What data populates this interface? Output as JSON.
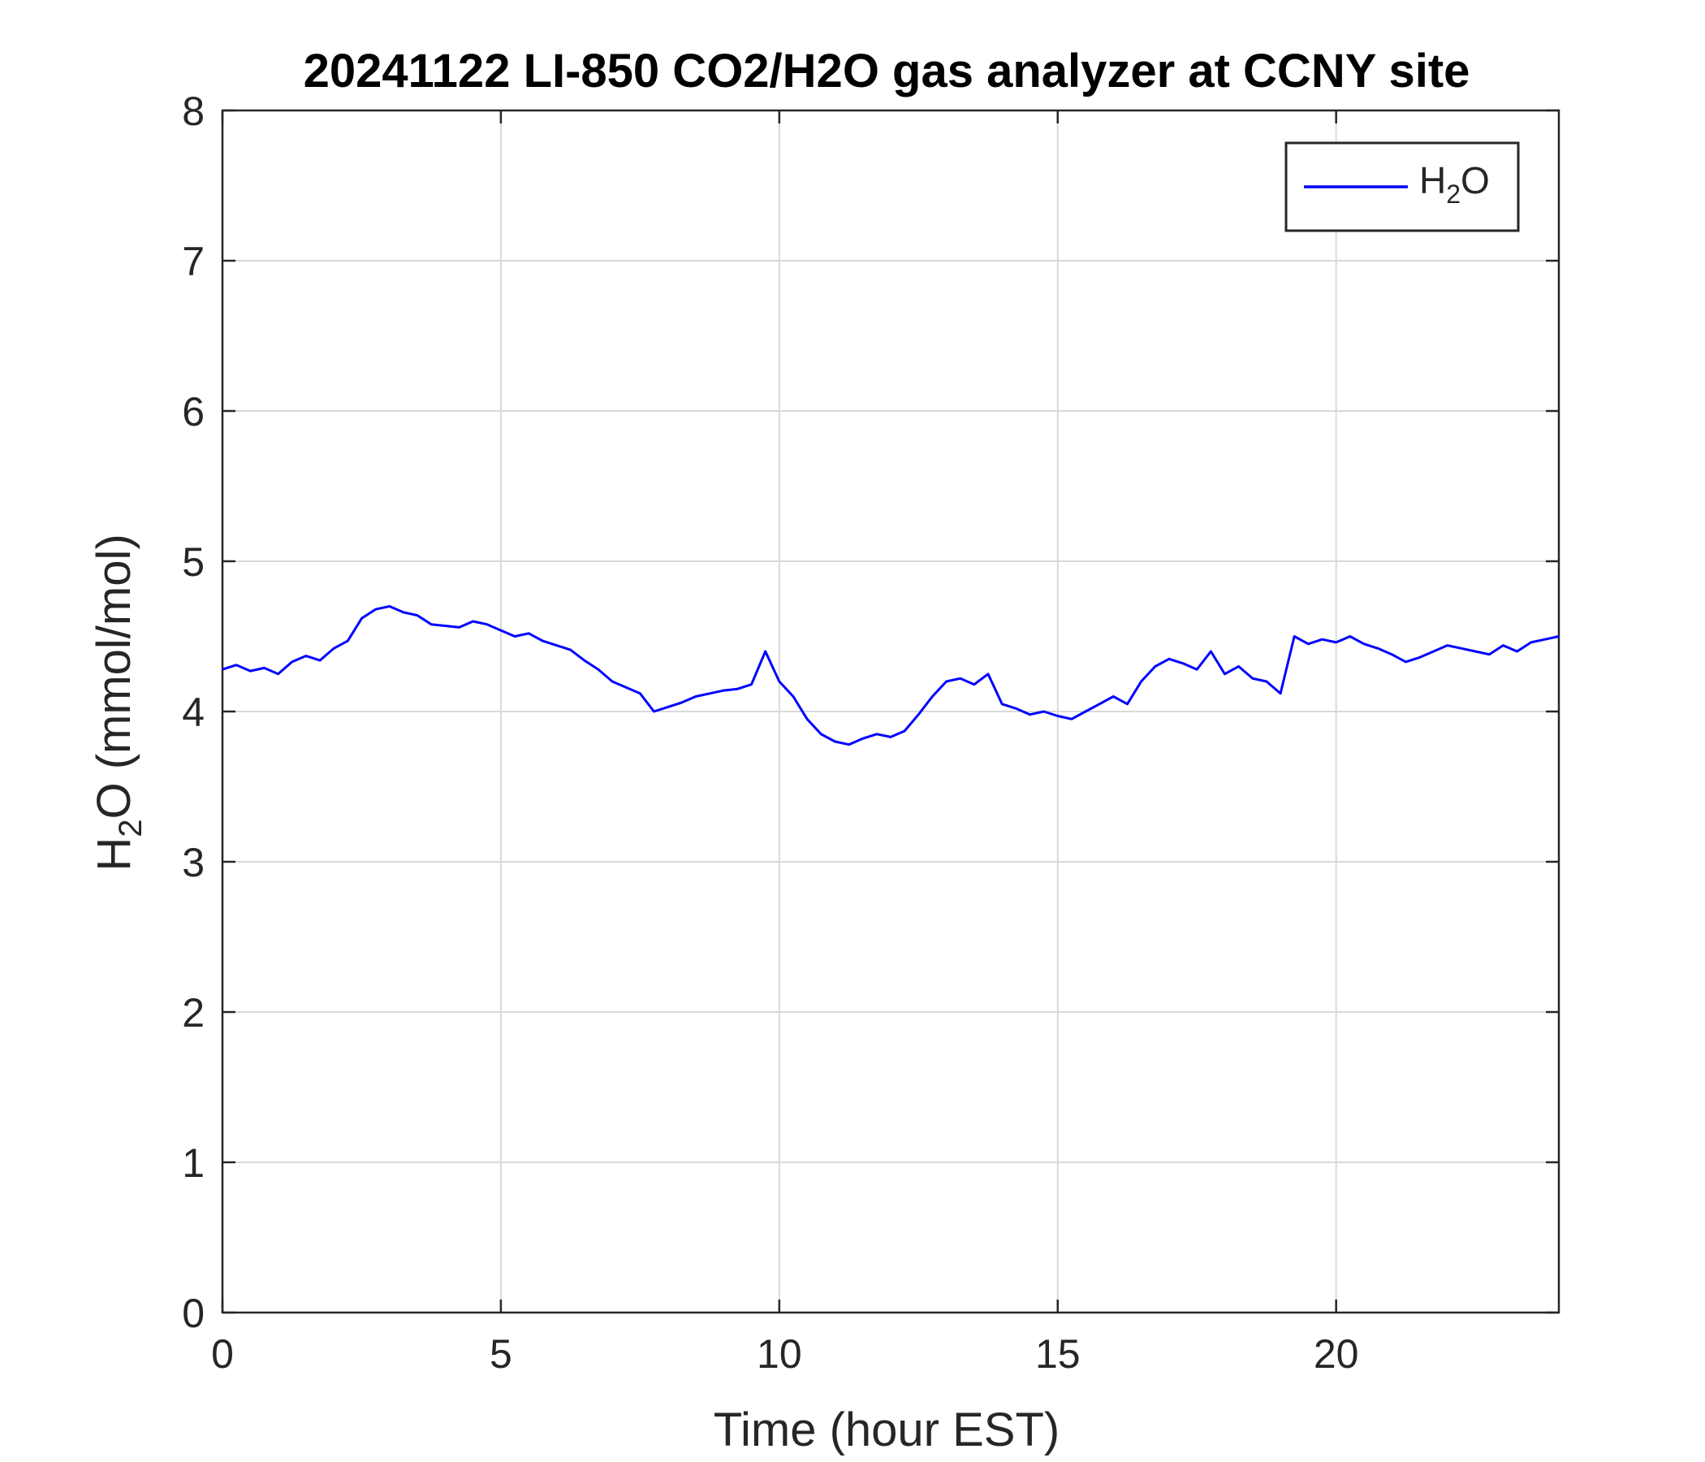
{
  "chart_data": {
    "type": "line",
    "title": "20241122 LI-850 CO2/H2O gas analyzer at CCNY site",
    "xlabel": "Time (hour EST)",
    "ylabel": {
      "prefix": "H",
      "subscript": "2",
      "suffix": "O (mmol/mol)"
    },
    "xlim": [
      0,
      24
    ],
    "ylim": [
      0,
      8
    ],
    "xticks": [
      0,
      5,
      10,
      15,
      20
    ],
    "yticks": [
      0,
      1,
      2,
      3,
      4,
      5,
      6,
      7,
      8
    ],
    "grid": true,
    "legend_position": "top-right",
    "series": [
      {
        "name": "H2O",
        "name_parts": {
          "prefix": "H",
          "subscript": "2",
          "suffix": "O"
        },
        "color": "#0000ff",
        "x": [
          0.0,
          0.25,
          0.5,
          0.75,
          1.0,
          1.25,
          1.5,
          1.75,
          2.0,
          2.25,
          2.5,
          2.75,
          3.0,
          3.25,
          3.5,
          3.75,
          4.0,
          4.25,
          4.5,
          4.75,
          5.0,
          5.25,
          5.5,
          5.75,
          6.0,
          6.25,
          6.5,
          6.75,
          7.0,
          7.25,
          7.5,
          7.75,
          8.0,
          8.25,
          8.5,
          8.75,
          9.0,
          9.25,
          9.5,
          9.75,
          10.0,
          10.25,
          10.5,
          10.75,
          11.0,
          11.25,
          11.5,
          11.75,
          12.0,
          12.25,
          12.5,
          12.75,
          13.0,
          13.25,
          13.5,
          13.75,
          14.0,
          14.25,
          14.5,
          14.75,
          15.0,
          15.25,
          15.5,
          15.75,
          16.0,
          16.25,
          16.5,
          16.75,
          17.0,
          17.25,
          17.5,
          17.75,
          18.0,
          18.25,
          18.5,
          18.75,
          19.0,
          19.25,
          19.5,
          19.75,
          20.0,
          20.25,
          20.5,
          20.75,
          21.0,
          21.25,
          21.5,
          21.75,
          22.0,
          22.25,
          22.5,
          22.75,
          23.0,
          23.25,
          23.5,
          23.75,
          24.0
        ],
        "y": [
          4.28,
          4.31,
          4.27,
          4.29,
          4.25,
          4.33,
          4.37,
          4.34,
          4.42,
          4.47,
          4.62,
          4.68,
          4.7,
          4.66,
          4.64,
          4.58,
          4.57,
          4.56,
          4.6,
          4.58,
          4.54,
          4.5,
          4.52,
          4.47,
          4.44,
          4.41,
          4.34,
          4.28,
          4.2,
          4.16,
          4.12,
          4.0,
          4.03,
          4.06,
          4.1,
          4.12,
          4.14,
          4.15,
          4.18,
          4.4,
          4.2,
          4.1,
          3.95,
          3.85,
          3.8,
          3.78,
          3.82,
          3.85,
          3.83,
          3.87,
          3.98,
          4.1,
          4.2,
          4.22,
          4.18,
          4.25,
          4.05,
          4.02,
          3.98,
          4.0,
          3.97,
          3.95,
          4.0,
          4.05,
          4.1,
          4.05,
          4.2,
          4.3,
          4.35,
          4.32,
          4.28,
          4.4,
          4.25,
          4.3,
          4.22,
          4.2,
          4.12,
          4.5,
          4.45,
          4.48,
          4.46,
          4.5,
          4.45,
          4.42,
          4.38,
          4.33,
          4.36,
          4.4,
          4.44,
          4.42,
          4.4,
          4.38,
          4.44,
          4.4,
          4.46,
          4.48,
          4.5
        ]
      }
    ]
  }
}
